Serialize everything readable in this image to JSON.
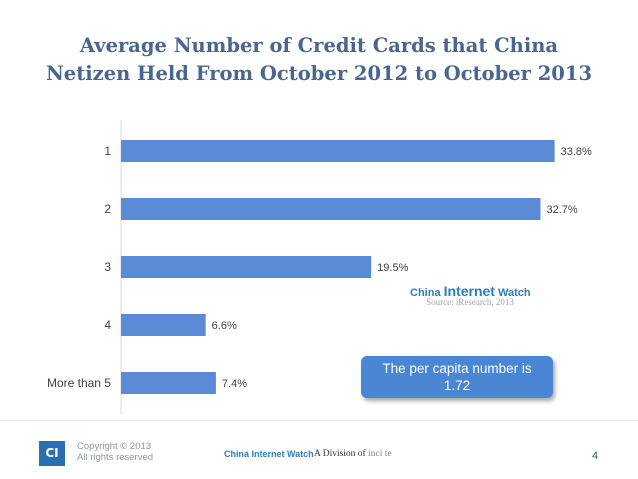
{
  "title": {
    "line1": "Average Number of Credit Cards that China",
    "line2": "Netizen Held From October 2012 to October 2013"
  },
  "chart_data": {
    "type": "bar",
    "orientation": "horizontal",
    "categories": [
      "1",
      "2",
      "3",
      "4",
      "More than 5"
    ],
    "values": [
      33.8,
      32.7,
      19.5,
      6.6,
      7.4
    ],
    "data_labels": [
      "33.8%",
      "32.7%",
      "19.5%",
      "6.6%",
      "7.4%"
    ],
    "xlim": [
      0,
      35
    ],
    "bar_color": "#5b8bd6",
    "grid": false
  },
  "watermark": {
    "brand_prefix": "China ",
    "brand_big": "Internet",
    "brand_suffix": " Watch",
    "source": "Source: iResearch, 2013"
  },
  "callout": {
    "line1": "The per capita number is",
    "line2": "1.72"
  },
  "footer": {
    "logo": "CI",
    "copyright_line1": "Copyright © 2013",
    "copyright_line2": "All rights reserved",
    "brand": "China Internet Watch",
    "division_prefix": "A Division of ",
    "division_name": "inci te",
    "page_number": "4"
  },
  "colors": {
    "title": "#4a6591",
    "bar": "#5b8bd6",
    "callout_bg": "#4a86d4",
    "accent": "#2a7fbf"
  }
}
